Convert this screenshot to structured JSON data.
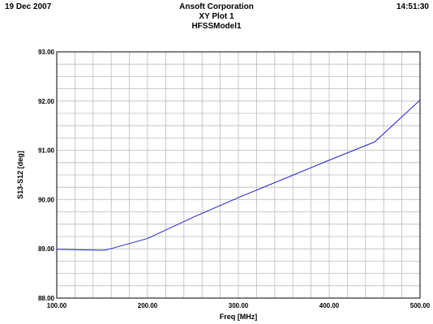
{
  "header": {
    "date": "19 Dec 2007",
    "company": "Ansoft Corporation",
    "plot_title": "XY Plot 1",
    "model": "HFSSModel1",
    "time": "14:51:30"
  },
  "colors": {
    "line": "#2222cc",
    "grid": "#bbbbbb",
    "frame": "#000000"
  },
  "chart_data": {
    "type": "line",
    "title": "XY Plot 1",
    "xlabel": "Freq [MHz]",
    "ylabel": "S13-S12 [deg]",
    "xlim": [
      100,
      500
    ],
    "ylim": [
      88,
      93
    ],
    "xticks": [
      100,
      200,
      300,
      400,
      500
    ],
    "xtick_labels": [
      "100.00",
      "200.00",
      "300.00",
      "400.00",
      "500.00"
    ],
    "yticks": [
      88,
      89,
      90,
      91,
      92,
      93
    ],
    "ytick_labels": [
      "88.00",
      "89.00",
      "90.00",
      "91.00",
      "92.00",
      "93.00"
    ],
    "x_minor_step": 20,
    "y_minor_step": 0.25,
    "grid": true,
    "series": [
      {
        "x": [
          100,
          150,
          155,
          200,
          250,
          300,
          350,
          400,
          450,
          500
        ],
        "values": [
          88.99,
          88.97,
          88.98,
          89.21,
          89.64,
          90.04,
          90.42,
          90.8,
          91.17,
          92.02
        ]
      }
    ]
  }
}
